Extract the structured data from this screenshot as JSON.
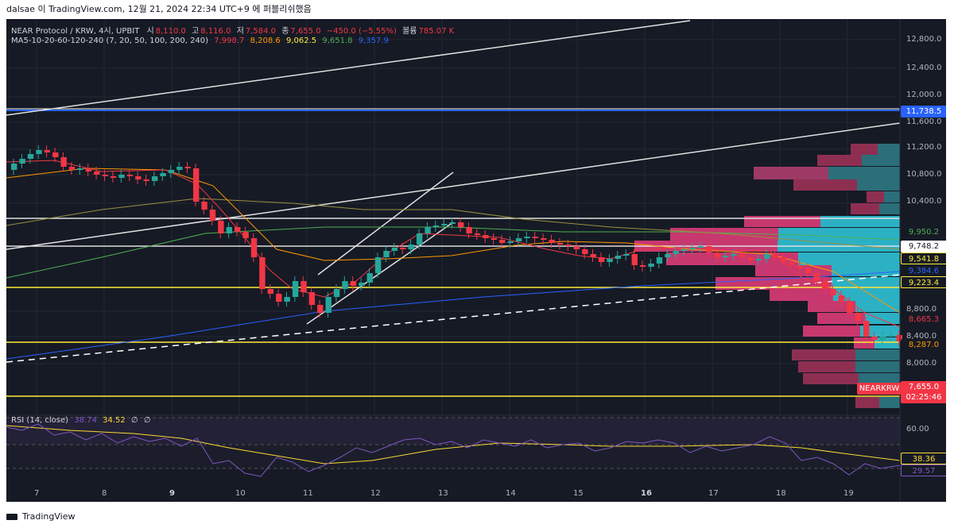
{
  "header": {
    "caption": "dalsae 이 TradingView.com, 12월 21, 2024 22:34 UTC+9 에 퍼블리쉬했음"
  },
  "legend": {
    "symbol": "NEAR Protocol / KRW, 4시, UPBIT",
    "o_label": "시",
    "o_value": "8,110.0",
    "h_label": "고",
    "h_value": "8,116.0",
    "l_label": "저",
    "l_value": "7,584.0",
    "c_label": "종",
    "c_value": "7,655.0",
    "change": "−450.0 (−5.55%)",
    "vol_label": "볼륨",
    "vol_value": "785.07 K",
    "ma_label": "MA5-10-20-60-120-240 (7, 20, 50, 100, 200, 240)",
    "ma_values": [
      "7,998.7",
      "8,208.6",
      "9,062.5",
      "9,651.8",
      "9,357.9"
    ],
    "ma_colors": [
      "#f23645",
      "#ff9800",
      "#ffeb3b",
      "#4caf50",
      "#2962ff"
    ]
  },
  "rsi": {
    "label": "RSI (14, close)",
    "v1": "38.74",
    "v2": "34.52",
    "v3": "∅",
    "v4": "∅",
    "tag_rsi": "38.36",
    "tag_ma": "29.57",
    "level": "60.00"
  },
  "price_axis": [
    "12,800.0",
    "12,400.0",
    "12,000.0",
    "11,600.0",
    "11,200.0",
    "10,800.0",
    "10,400.0",
    "8,800.0",
    "8,400.0",
    "8,000.0"
  ],
  "tags": [
    {
      "text": "11,738.5",
      "bg": "#2962ff",
      "fg": "#ffffff"
    },
    {
      "text": "9,950.2",
      "bg": "#161a25",
      "fg": "#4caf50"
    },
    {
      "text": "9,748.2",
      "bg": "#ffffff",
      "fg": "#131722"
    },
    {
      "text": "9,541.8",
      "bg": "#161a25",
      "fg": "#ffeb3b"
    },
    {
      "text": "9,384.6",
      "bg": "#161a25",
      "fg": "#2962ff"
    },
    {
      "text": "9,223.4",
      "bg": "#161a25",
      "fg": "#ffeb3b"
    },
    {
      "text": "8,665.3",
      "bg": "#161a25",
      "fg": "#f23645"
    },
    {
      "text": "8,287.0",
      "bg": "#161a25",
      "fg": "#ff9800"
    },
    {
      "text": "NEARKRW",
      "bg": "#f23645",
      "fg": "#ffffff"
    },
    {
      "text": "7,655.0",
      "bg": "#f23645",
      "fg": "#ffffff"
    },
    {
      "text": "02:25:46",
      "bg": "#f23645",
      "fg": "#ffffff"
    }
  ],
  "time_axis": [
    "7",
    "8",
    "9",
    "10",
    "11",
    "12",
    "13",
    "14",
    "15",
    "16",
    "17",
    "18",
    "19"
  ],
  "footer": {
    "brand": "TradingView"
  }
}
